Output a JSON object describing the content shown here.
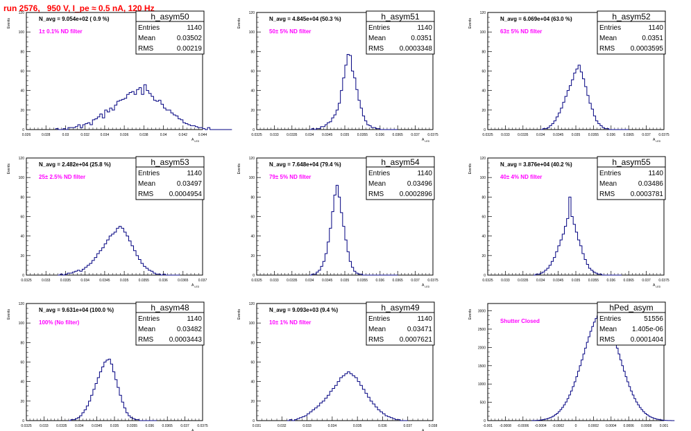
{
  "run_title": "run 2576,   950 V, I_pe ≈ 0.5 nA, 120 Hz",
  "colors": {
    "title": "#ff0000",
    "filter_label": "#ff00ff",
    "histogram": "#000080"
  },
  "chart_data": [
    {
      "type": "histogram",
      "name": "h_asym50",
      "n_avg_label": "N_avg = 9.054e+02 ( 0.9 %)",
      "filter_label": "1± 0.1% ND filter",
      "stats": {
        "entries": "1140",
        "mean": "0.03502",
        "rms": "0.00219"
      },
      "ylabel": "Events",
      "xlabel": "A_LED",
      "xlim": [
        0.026,
        0.044
      ],
      "ylim": [
        0,
        120
      ],
      "xticks": [
        "0.026",
        "0.028",
        "0.03",
        "0.032",
        "0.034",
        "0.036",
        "0.038",
        "0.04",
        "0.042",
        "0.044"
      ],
      "yticks": [
        "0",
        "20",
        "40",
        "60",
        "80",
        "100",
        "120"
      ],
      "hist": {
        "x0": 0.029,
        "bw": 0.00025,
        "counts": [
          1,
          0,
          0,
          1,
          0,
          2,
          2,
          2,
          3,
          5,
          2,
          5,
          6,
          7,
          5,
          10,
          11,
          13,
          16,
          12,
          20,
          18,
          22,
          20,
          25,
          29,
          30,
          31,
          32,
          36,
          38,
          39,
          36,
          41,
          43,
          36,
          46,
          40,
          37,
          34,
          30,
          29,
          30,
          26,
          22,
          20,
          20,
          17,
          15,
          14,
          11,
          10,
          7,
          6,
          5,
          4,
          4,
          3,
          2,
          2,
          1,
          0,
          2,
          0,
          0,
          0,
          0,
          0,
          0,
          0,
          0,
          0
        ]
      }
    },
    {
      "type": "histogram",
      "name": "h_asym51",
      "n_avg_label": "N_avg = 4.845e+04 (50.3 %)",
      "filter_label": "50± 5% ND filter",
      "stats": {
        "entries": "1140",
        "mean": "0.0351",
        "rms": "0.0003348"
      },
      "ylabel": "Events",
      "xlabel": "A_LED",
      "xlim": [
        0.0325,
        0.0375
      ],
      "ylim": [
        0,
        120
      ],
      "xticks": [
        "0.0325",
        "0.033",
        "0.0335",
        "0.034",
        "0.0345",
        "0.035",
        "0.0355",
        "0.036",
        "0.0365",
        "0.037",
        "0.0375"
      ],
      "yticks": [
        "0",
        "20",
        "40",
        "60",
        "80",
        "100",
        "120"
      ],
      "hist": {
        "x0": 0.034,
        "bw": 6.25e-05,
        "counts": [
          0,
          1,
          0,
          1,
          1,
          3,
          3,
          5,
          7,
          8,
          12,
          15,
          20,
          27,
          40,
          53,
          66,
          77,
          76,
          60,
          53,
          41,
          30,
          22,
          14,
          9,
          5,
          4,
          2,
          2,
          1,
          1,
          0,
          0,
          0,
          0,
          0,
          0,
          0,
          0
        ]
      }
    },
    {
      "type": "histogram",
      "name": "h_asym52",
      "n_avg_label": "N_avg = 6.069e+04 (63.0 %)",
      "filter_label": "63± 5% ND filter",
      "stats": {
        "entries": "1140",
        "mean": "0.0351",
        "rms": "0.0003595"
      },
      "ylabel": "Events",
      "xlabel": "A_LED",
      "xlim": [
        0.0325,
        0.0375
      ],
      "ylim": [
        0,
        120
      ],
      "xticks": [
        "0.0325",
        "0.033",
        "0.0335",
        "0.034",
        "0.0345",
        "0.035",
        "0.0355",
        "0.036",
        "0.0365",
        "0.037",
        "0.0375"
      ],
      "yticks": [
        "0",
        "20",
        "40",
        "60",
        "80",
        "100",
        "120"
      ],
      "hist": {
        "x0": 0.034,
        "bw": 6.25e-05,
        "counts": [
          0,
          1,
          1,
          2,
          4,
          6,
          9,
          13,
          17,
          22,
          28,
          34,
          40,
          45,
          51,
          58,
          62,
          66,
          59,
          52,
          44,
          35,
          27,
          21,
          14,
          9,
          6,
          4,
          2,
          1,
          1,
          0,
          0,
          0,
          0,
          0,
          0,
          0,
          0,
          0
        ]
      }
    },
    {
      "type": "histogram",
      "name": "h_asym53",
      "n_avg_label": "N_avg = 2.482e+04 (25.8 %)",
      "filter_label": "25± 2.5% ND filter",
      "stats": {
        "entries": "1140",
        "mean": "0.03497",
        "rms": "0.0004954"
      },
      "ylabel": "Events",
      "xlabel": "A_LED",
      "xlim": [
        0.0325,
        0.037
      ],
      "ylim": [
        0,
        120
      ],
      "xticks": [
        "0.0325",
        "0.033",
        "0.0335",
        "0.034",
        "0.0345",
        "0.035",
        "0.0355",
        "0.036",
        "0.0365",
        "0.037"
      ],
      "yticks": [
        "0",
        "20",
        "40",
        "60",
        "80",
        "100",
        "120"
      ],
      "hist": {
        "x0": 0.0333,
        "bw": 6.25e-05,
        "counts": [
          0,
          1,
          0,
          1,
          2,
          2,
          3,
          4,
          5,
          4,
          6,
          8,
          10,
          12,
          15,
          18,
          22,
          25,
          28,
          32,
          36,
          40,
          42,
          44,
          48,
          50,
          48,
          44,
          40,
          35,
          30,
          25,
          20,
          16,
          12,
          9,
          7,
          5,
          4,
          2,
          1,
          1,
          0,
          1,
          0,
          0,
          0,
          0,
          0,
          0
        ]
      }
    },
    {
      "type": "histogram",
      "name": "h_asym54",
      "n_avg_label": "N_avg = 7.648e+04 (79.4 %)",
      "filter_label": "79± 5% ND filter",
      "stats": {
        "entries": "1140",
        "mean": "0.03496",
        "rms": "0.0002896"
      },
      "ylabel": "Events",
      "xlabel": "A_LED",
      "xlim": [
        0.0325,
        0.0375
      ],
      "ylim": [
        0,
        120
      ],
      "xticks": [
        "0.0325",
        "0.033",
        "0.0335",
        "0.034",
        "0.0345",
        "0.035",
        "0.0355",
        "0.036",
        "0.0365",
        "0.037",
        "0.0375"
      ],
      "yticks": [
        "0",
        "20",
        "40",
        "60",
        "80",
        "100",
        "120"
      ],
      "hist": {
        "x0": 0.034,
        "bw": 6.25e-05,
        "counts": [
          0,
          1,
          1,
          3,
          5,
          9,
          14,
          22,
          34,
          48,
          65,
          82,
          92,
          80,
          64,
          50,
          36,
          24,
          14,
          8,
          4,
          2,
          1,
          1,
          0,
          0,
          0,
          0,
          0,
          0,
          0,
          0,
          0,
          0,
          0,
          0,
          0,
          0,
          0,
          0
        ]
      }
    },
    {
      "type": "histogram",
      "name": "h_asym55",
      "n_avg_label": "N_avg = 3.876e+04 (40.2 %)",
      "filter_label": "40± 4% ND filter",
      "stats": {
        "entries": "1140",
        "mean": "0.03486",
        "rms": "0.0003781"
      },
      "ylabel": "Events",
      "xlabel": "A_LED",
      "xlim": [
        0.0325,
        0.0375
      ],
      "ylim": [
        0,
        120
      ],
      "xticks": [
        "0.0325",
        "0.033",
        "0.0335",
        "0.034",
        "0.0345",
        "0.035",
        "0.0355",
        "0.036",
        "0.0365",
        "0.037",
        "0.0375"
      ],
      "yticks": [
        "0",
        "20",
        "40",
        "60",
        "80",
        "100",
        "120"
      ],
      "hist": {
        "x0": 0.0338,
        "bw": 6.25e-05,
        "counts": [
          0,
          1,
          1,
          2,
          3,
          5,
          7,
          10,
          14,
          18,
          24,
          30,
          36,
          42,
          50,
          58,
          80,
          60,
          52,
          44,
          36,
          30,
          22,
          16,
          11,
          7,
          5,
          3,
          2,
          1,
          1,
          0,
          0,
          0,
          0,
          0,
          0,
          0,
          0,
          0
        ]
      }
    },
    {
      "type": "histogram",
      "name": "h_asym48",
      "n_avg_label": "N_avg = 9.631e+04 (100.0 %)",
      "filter_label": "100% (No filter)",
      "stats": {
        "entries": "1140",
        "mean": "0.03482",
        "rms": "0.0003443"
      },
      "ylabel": "Events",
      "xlabel": "A_LED",
      "xlim": [
        0.0325,
        0.0375
      ],
      "ylim": [
        0,
        120
      ],
      "xticks": [
        "0.0325",
        "0.033",
        "0.0335",
        "0.034",
        "0.0345",
        "0.035",
        "0.0355",
        "0.036",
        "0.0365",
        "0.037",
        "0.0375"
      ],
      "yticks": [
        "0",
        "20",
        "40",
        "60",
        "80",
        "100",
        "120"
      ],
      "hist": {
        "x0": 0.0337,
        "bw": 6.25e-05,
        "counts": [
          0,
          1,
          1,
          2,
          3,
          5,
          8,
          11,
          15,
          20,
          26,
          32,
          38,
          44,
          50,
          55,
          60,
          62,
          63,
          58,
          50,
          42,
          34,
          26,
          19,
          13,
          8,
          5,
          3,
          2,
          1,
          1,
          0,
          0,
          0,
          0,
          0,
          0,
          0,
          0
        ]
      }
    },
    {
      "type": "histogram",
      "name": "h_asym49",
      "n_avg_label": "N_avg = 9.093e+03 (9.4 %)",
      "filter_label": "10± 1% ND filter",
      "stats": {
        "entries": "1140",
        "mean": "0.03471",
        "rms": "0.0007621"
      },
      "ylabel": "Events",
      "xlabel": "A_LED",
      "xlim": [
        0.031,
        0.038
      ],
      "ylim": [
        0,
        120
      ],
      "xticks": [
        "0.031",
        "0.032",
        "0.033",
        "0.034",
        "0.035",
        "0.036",
        "0.037",
        "0.038"
      ],
      "yticks": [
        "0",
        "20",
        "40",
        "60",
        "80",
        "100",
        "120"
      ],
      "hist": {
        "x0": 0.0322,
        "bw": 0.0001,
        "counts": [
          0,
          1,
          0,
          1,
          2,
          3,
          4,
          5,
          7,
          9,
          11,
          13,
          15,
          18,
          20,
          23,
          26,
          30,
          33,
          36,
          40,
          44,
          46,
          48,
          50,
          48,
          46,
          44,
          40,
          36,
          32,
          28,
          24,
          20,
          17,
          14,
          11,
          9,
          7,
          5,
          4,
          3,
          2,
          1,
          1,
          0,
          0,
          0
        ]
      }
    },
    {
      "type": "histogram",
      "name": "hPed_asym",
      "n_avg_label": "",
      "filter_label": "Shutter Closed",
      "stats": {
        "entries": "51556",
        "mean": "1.405e-06",
        "rms": "0.0001404"
      },
      "ylabel": "Events",
      "xlabel": "",
      "xlim": [
        -0.001,
        0.001
      ],
      "ylim": [
        0,
        3200
      ],
      "xticks": [
        "-0.001",
        "-0.0008",
        "-0.0006",
        "-0.0004",
        "-0.0002",
        "0",
        "0.0002",
        "0.0004",
        "0.0006",
        "0.0008",
        "0.001"
      ],
      "yticks": [
        "0",
        "500",
        "1000",
        "1500",
        "2000",
        "2500",
        "3000"
      ],
      "hist": {
        "x0": -0.0005,
        "bw": 2e-05,
        "counts": [
          2,
          3,
          5,
          8,
          12,
          18,
          26,
          36,
          48,
          62,
          80,
          100,
          128,
          160,
          200,
          245,
          300,
          360,
          430,
          510,
          600,
          700,
          810,
          930,
          1060,
          1200,
          1350,
          1500,
          1660,
          1820,
          1980,
          2140,
          2290,
          2440,
          2570,
          2690,
          2790,
          2860,
          2900,
          2920,
          2900,
          2860,
          2790,
          2690,
          2570,
          2440,
          2290,
          2140,
          1980,
          1820,
          1660,
          1500,
          1350,
          1200,
          1060,
          930,
          810,
          700,
          600,
          510,
          430,
          360,
          300,
          245,
          200,
          160,
          128,
          100,
          80,
          62,
          48,
          36,
          26,
          18,
          12,
          8,
          5,
          3,
          2,
          1,
          0
        ]
      }
    }
  ]
}
